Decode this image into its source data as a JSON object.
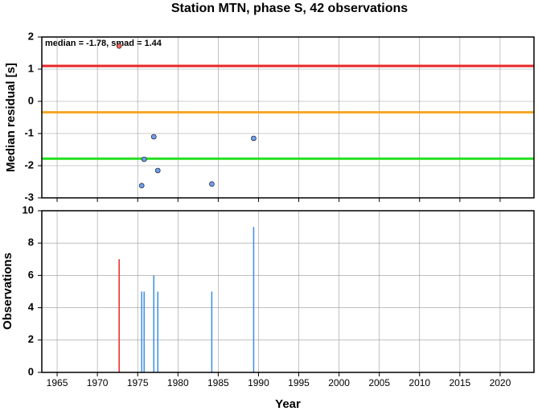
{
  "chart_data": [
    {
      "type": "scatter",
      "title": "Station MTN, phase S, 42 observations",
      "annotation": "median = -1.78, smad = 1.44",
      "y_label": "Median residual [s]",
      "xlim": [
        1963.1,
        2024.2
      ],
      "ylim": [
        -3,
        2
      ],
      "yticks": [
        2,
        1,
        0,
        -1,
        -2,
        -3
      ],
      "grid": true,
      "hlines": [
        {
          "value": 1.1,
          "color": "#e8262a"
        },
        {
          "value": -0.34,
          "color": "#f5a623"
        },
        {
          "value": -1.78,
          "color": "#22e01e"
        }
      ],
      "series": [
        {
          "color": "#f0645a",
          "x": [
            1972.7
          ],
          "values": [
            1.72
          ]
        },
        {
          "color": "#6f9ef0",
          "x": [
            1975.5,
            1975.8,
            1977.0,
            1977.5,
            1984.2,
            1989.4
          ],
          "values": [
            -2.62,
            -1.8,
            -1.1,
            -2.15,
            -2.57,
            -1.15
          ]
        }
      ]
    },
    {
      "type": "bar",
      "x_label": "Year",
      "y_label": "Observations",
      "xlim": [
        1963.1,
        2024.2
      ],
      "ylim": [
        0,
        10
      ],
      "yticks": [
        0,
        2,
        4,
        6,
        8,
        10
      ],
      "xticks": [
        1965,
        1970,
        1975,
        1980,
        1985,
        1990,
        1995,
        2000,
        2005,
        2010,
        2015,
        2020
      ],
      "grid": true,
      "series": [
        {
          "color": "#e8262a",
          "x": [
            1972.7
          ],
          "values": [
            7
          ]
        },
        {
          "color": "#3a8ee6",
          "x": [
            1975.5,
            1975.8,
            1977.0,
            1977.5,
            1984.2,
            1989.4
          ],
          "values": [
            5,
            5,
            6,
            5,
            5,
            9
          ]
        }
      ]
    }
  ]
}
